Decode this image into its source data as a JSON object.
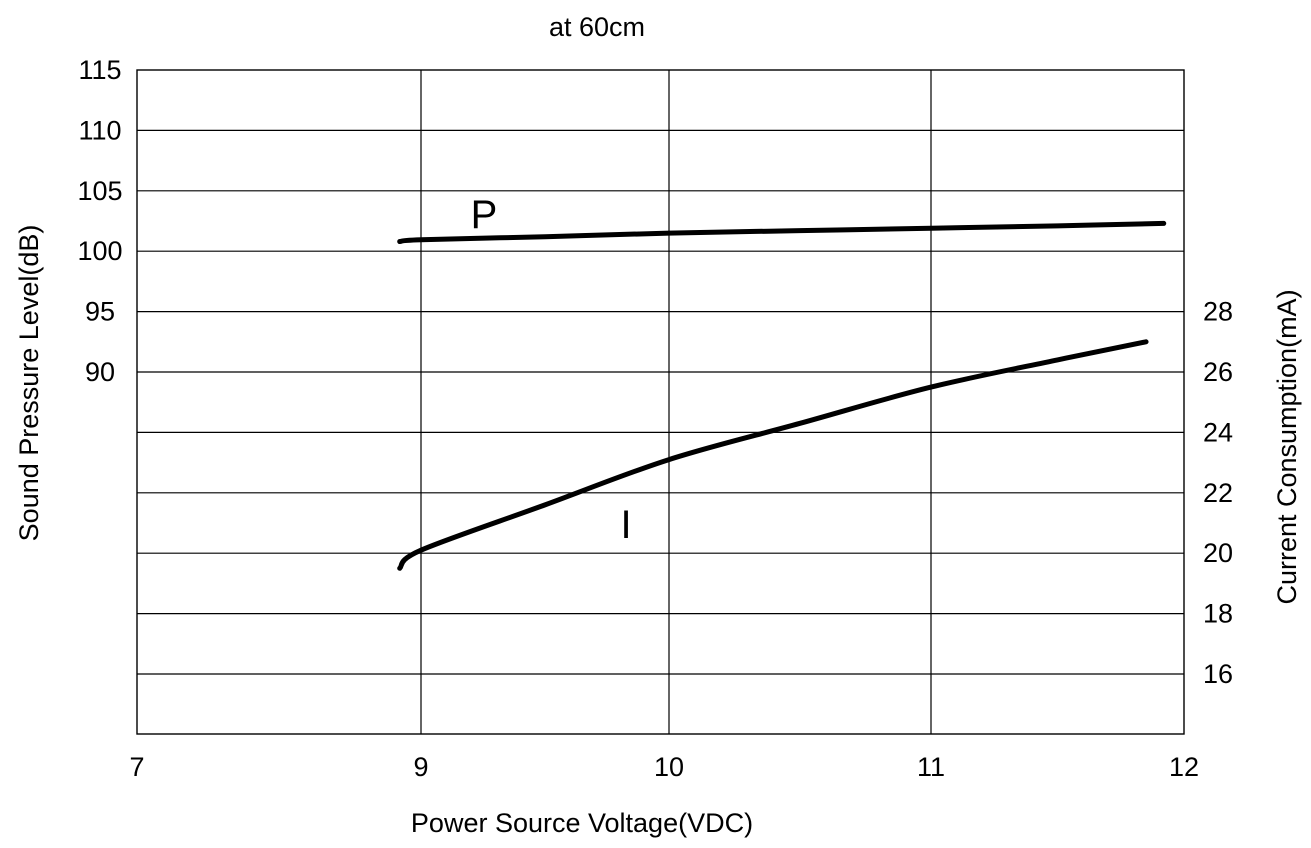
{
  "chart_data": {
    "type": "line",
    "title": "at 60cm",
    "xlabel": "Power Source Voltage(VDC)",
    "ylabel_left": "Sound Pressure Level(dB)",
    "ylabel_right": "Current Consumption(mA)",
    "x_ticks": [
      "7",
      "9",
      "10",
      "11",
      "12"
    ],
    "left_ticks": [
      "115",
      "110",
      "105",
      "100",
      "95",
      "90"
    ],
    "right_ticks": [
      "28",
      "26",
      "24",
      "22",
      "20",
      "18",
      "16"
    ],
    "grid": true,
    "series": [
      {
        "name": "P",
        "axis": "left",
        "x": [
          8.85,
          9.0,
          9.5,
          10.0,
          10.5,
          11.0,
          11.5,
          11.92
        ],
        "y": [
          100.8,
          100.95,
          101.2,
          101.5,
          101.7,
          101.9,
          102.1,
          102.3
        ]
      },
      {
        "name": "I",
        "axis": "right",
        "x": [
          8.85,
          9.0,
          9.5,
          10.0,
          10.5,
          11.0,
          11.5,
          11.85
        ],
        "y": [
          19.5,
          20.1,
          21.6,
          23.1,
          24.3,
          25.5,
          26.4,
          27.0
        ]
      }
    ]
  }
}
